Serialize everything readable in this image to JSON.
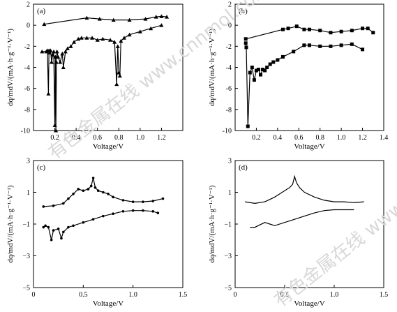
{
  "watermark": "有色金属在线 www.cnnmol.com",
  "chart_data": [
    {
      "panel": "(a)",
      "type": "line",
      "xlabel": "Voltage/V",
      "ylabel": "dq/mdV/(mA·h·g⁻¹·V⁻¹)",
      "xlim": [
        0,
        1.4
      ],
      "ylim": [
        -10,
        2
      ],
      "xticks": [
        0.2,
        0.4,
        0.6,
        0.8,
        1.0,
        1.2
      ],
      "xtick_labels": [
        "0.2",
        "0.4",
        "0.6",
        "0.8",
        "1.0",
        "1.2"
      ],
      "yticks": [
        -10,
        -8,
        -6,
        -4,
        -2,
        0,
        2
      ],
      "ytick_labels": [
        "-10",
        "-8",
        "-6",
        "-4",
        "-2",
        "0",
        "2"
      ],
      "marker": "triangle",
      "series": [
        {
          "x": [
            0.1,
            0.5,
            0.62,
            0.75,
            0.9,
            1.05,
            1.15,
            1.2,
            1.25
          ],
          "y": [
            0.1,
            0.7,
            0.6,
            0.5,
            0.5,
            0.6,
            0.8,
            0.85,
            0.8
          ]
        },
        {
          "x": [
            0.08,
            0.12,
            0.13,
            0.14,
            0.145,
            0.15,
            0.16,
            0.17,
            0.18,
            0.19,
            0.2,
            0.205,
            0.21,
            0.215,
            0.22,
            0.23,
            0.25,
            0.27,
            0.28,
            0.3,
            0.32,
            0.35,
            0.38,
            0.42,
            0.45,
            0.5,
            0.55,
            0.6,
            0.65,
            0.72,
            0.76,
            0.78,
            0.79,
            0.8,
            0.81,
            0.82,
            0.85,
            0.9,
            1.0,
            1.1,
            1.2
          ],
          "y": [
            -2.5,
            -2.5,
            -2.4,
            -6.5,
            -2.4,
            -2.6,
            -2.4,
            -3.5,
            -2.8,
            -2.5,
            -9.5,
            -3.0,
            -10.0,
            -3.5,
            -2.5,
            -3.0,
            -3.5,
            -2.7,
            -4.0,
            -2.5,
            -2.2,
            -2.0,
            -1.6,
            -1.3,
            -1.2,
            -1.2,
            -1.2,
            -1.4,
            -1.3,
            -1.4,
            -1.6,
            -5.6,
            -2.0,
            -4.5,
            -4.8,
            -1.5,
            -1.2,
            -0.9,
            -0.6,
            -0.3,
            0.0
          ]
        }
      ]
    },
    {
      "panel": "(b)",
      "type": "line",
      "xlabel": "Voltage/V",
      "ylabel": "dq/mdV/(mA·h·g⁻¹·V⁻¹)",
      "xlim": [
        0,
        1.4
      ],
      "ylim": [
        -10,
        2
      ],
      "xticks": [
        0.2,
        0.4,
        0.6,
        0.8,
        1.0,
        1.2,
        1.4
      ],
      "xtick_labels": [
        "0.2",
        "0.4",
        "0.6",
        "0.8",
        "1.0",
        "1.2",
        "1.4"
      ],
      "yticks": [
        -10,
        -8,
        -6,
        -4,
        -2,
        0,
        2
      ],
      "ytick_labels": [
        "-10",
        "-8",
        "-6",
        "-4",
        "-2",
        "0",
        "2"
      ],
      "marker": "square",
      "series": [
        {
          "x": [
            0.1,
            0.45,
            0.5,
            0.58,
            0.65,
            0.7,
            0.8,
            0.9,
            1.0,
            1.1,
            1.2,
            1.25,
            1.3
          ],
          "y": [
            -1.3,
            -0.4,
            -0.3,
            -0.1,
            -0.4,
            -0.4,
            -0.5,
            -0.7,
            -0.6,
            -0.5,
            -0.3,
            -0.3,
            -0.7
          ]
        },
        {
          "x": [
            0.1,
            0.105,
            0.12,
            0.14,
            0.16,
            0.18,
            0.2,
            0.22,
            0.24,
            0.26,
            0.28,
            0.3,
            0.33,
            0.36,
            0.4,
            0.45,
            0.55,
            0.65,
            0.7,
            0.8,
            0.9,
            1.0,
            1.1,
            1.2
          ],
          "y": [
            -1.7,
            -2.1,
            -9.6,
            -4.5,
            -4.0,
            -5.2,
            -4.3,
            -4.2,
            -4.7,
            -4.2,
            -4.3,
            -4.0,
            -3.7,
            -3.5,
            -3.3,
            -3.0,
            -2.5,
            -1.9,
            -1.9,
            -2.0,
            -2.0,
            -1.9,
            -1.8,
            -2.3
          ]
        }
      ]
    },
    {
      "panel": "(c)",
      "type": "line",
      "xlabel": "Voltage/V",
      "ylabel": "dq/mdV/(mA·h·g⁻¹·V⁻¹)",
      "xlim": [
        0,
        1.5
      ],
      "ylim": [
        -5,
        3
      ],
      "xticks": [
        0,
        0.5,
        1.0,
        1.5
      ],
      "xtick_labels": [
        "0",
        "0.5",
        "1.0",
        "1.5"
      ],
      "yticks": [
        -5,
        -3,
        -1,
        1,
        3
      ],
      "ytick_labels": [
        "−5",
        "−3",
        "−1",
        "1",
        "3"
      ],
      "marker": "dot",
      "series": [
        {
          "x": [
            0.1,
            0.2,
            0.3,
            0.35,
            0.4,
            0.45,
            0.5,
            0.55,
            0.58,
            0.6,
            0.62,
            0.65,
            0.7,
            0.75,
            0.8,
            0.9,
            1.0,
            1.1,
            1.2,
            1.3
          ],
          "y": [
            0.1,
            0.15,
            0.3,
            0.6,
            0.9,
            1.2,
            1.1,
            1.2,
            1.4,
            1.9,
            1.3,
            1.1,
            1.0,
            0.9,
            0.7,
            0.5,
            0.4,
            0.4,
            0.45,
            0.6
          ]
        },
        {
          "x": [
            0.1,
            0.12,
            0.15,
            0.18,
            0.2,
            0.25,
            0.28,
            0.3,
            0.35,
            0.4,
            0.5,
            0.6,
            0.7,
            0.8,
            0.9,
            1.0,
            1.1,
            1.2,
            1.25
          ],
          "y": [
            -1.2,
            -1.1,
            -1.2,
            -2.0,
            -1.4,
            -1.3,
            -1.9,
            -1.5,
            -1.2,
            -1.1,
            -0.9,
            -0.7,
            -0.5,
            -0.35,
            -0.2,
            -0.15,
            -0.15,
            -0.2,
            -0.3
          ]
        }
      ]
    },
    {
      "panel": "(d)",
      "type": "line",
      "xlabel": "Voltage/V",
      "ylabel": "dq/mdV/(mA·h·g⁻¹·V⁻¹)",
      "xlim": [
        0,
        1.5
      ],
      "ylim": [
        -5,
        3
      ],
      "xticks": [
        0,
        0.5,
        1.0,
        1.5
      ],
      "xtick_labels": [
        "0",
        "0.5",
        "1.0",
        "1.5"
      ],
      "yticks": [
        -5,
        -3,
        -1,
        1,
        3
      ],
      "ytick_labels": [
        "−5",
        "−3",
        "−1",
        "1",
        "3"
      ],
      "marker": "none",
      "series": [
        {
          "x": [
            0.1,
            0.2,
            0.3,
            0.4,
            0.45,
            0.5,
            0.55,
            0.58,
            0.6,
            0.62,
            0.65,
            0.7,
            0.8,
            0.9,
            1.0,
            1.1,
            1.2,
            1.3
          ],
          "y": [
            0.4,
            0.3,
            0.4,
            0.7,
            0.9,
            1.1,
            1.3,
            1.5,
            2.0,
            1.6,
            1.3,
            1.0,
            0.7,
            0.5,
            0.4,
            0.4,
            0.35,
            0.4
          ]
        },
        {
          "x": [
            0.15,
            0.2,
            0.3,
            0.35,
            0.4,
            0.5,
            0.6,
            0.7,
            0.8,
            0.9,
            1.0,
            1.1,
            1.2
          ],
          "y": [
            -1.2,
            -1.2,
            -0.9,
            -1.0,
            -1.1,
            -0.9,
            -0.7,
            -0.5,
            -0.3,
            -0.15,
            -0.1,
            -0.1,
            -0.1
          ]
        }
      ]
    }
  ]
}
